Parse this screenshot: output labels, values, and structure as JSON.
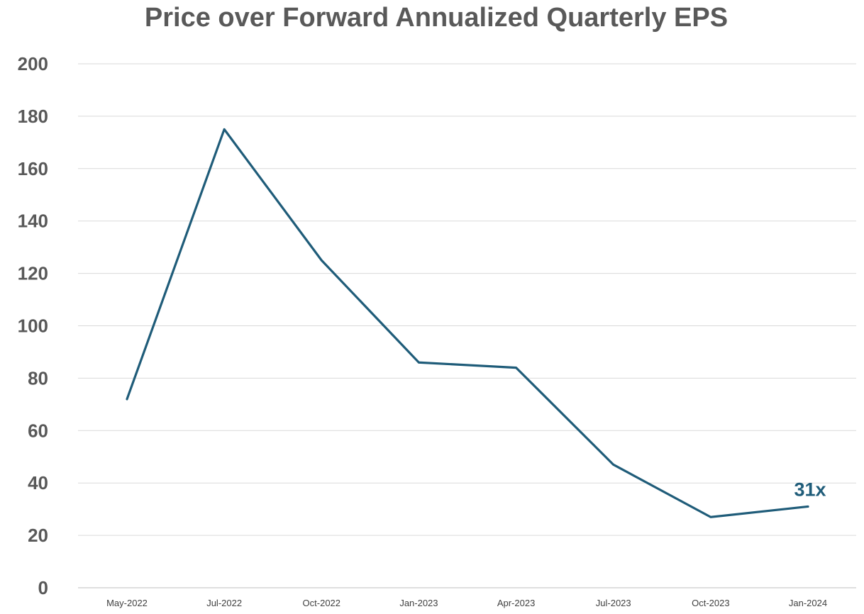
{
  "chart_data": {
    "type": "line",
    "title": "Price over Forward Annualized Quarterly EPS",
    "xlabel": "",
    "ylabel": "",
    "categories": [
      "May-2022",
      "Jul-2022",
      "Oct-2022",
      "Jan-2023",
      "Apr-2023",
      "Jul-2023",
      "Oct-2023",
      "Jan-2024"
    ],
    "series": [
      {
        "values": [
          72,
          175,
          125,
          86,
          84,
          47,
          27,
          31
        ]
      }
    ],
    "ylim": [
      0,
      200
    ],
    "yticks": [
      "0",
      "20",
      "40",
      "60",
      "80",
      "100",
      "120",
      "140",
      "160",
      "180",
      "200"
    ],
    "grid": true,
    "annotation": {
      "text": "31x",
      "index": 7
    },
    "colors": {
      "line": "#1f5c79",
      "annotation": "#1f5c79",
      "grid": "#d9d9d9",
      "axis": "#bfbfbf"
    }
  }
}
